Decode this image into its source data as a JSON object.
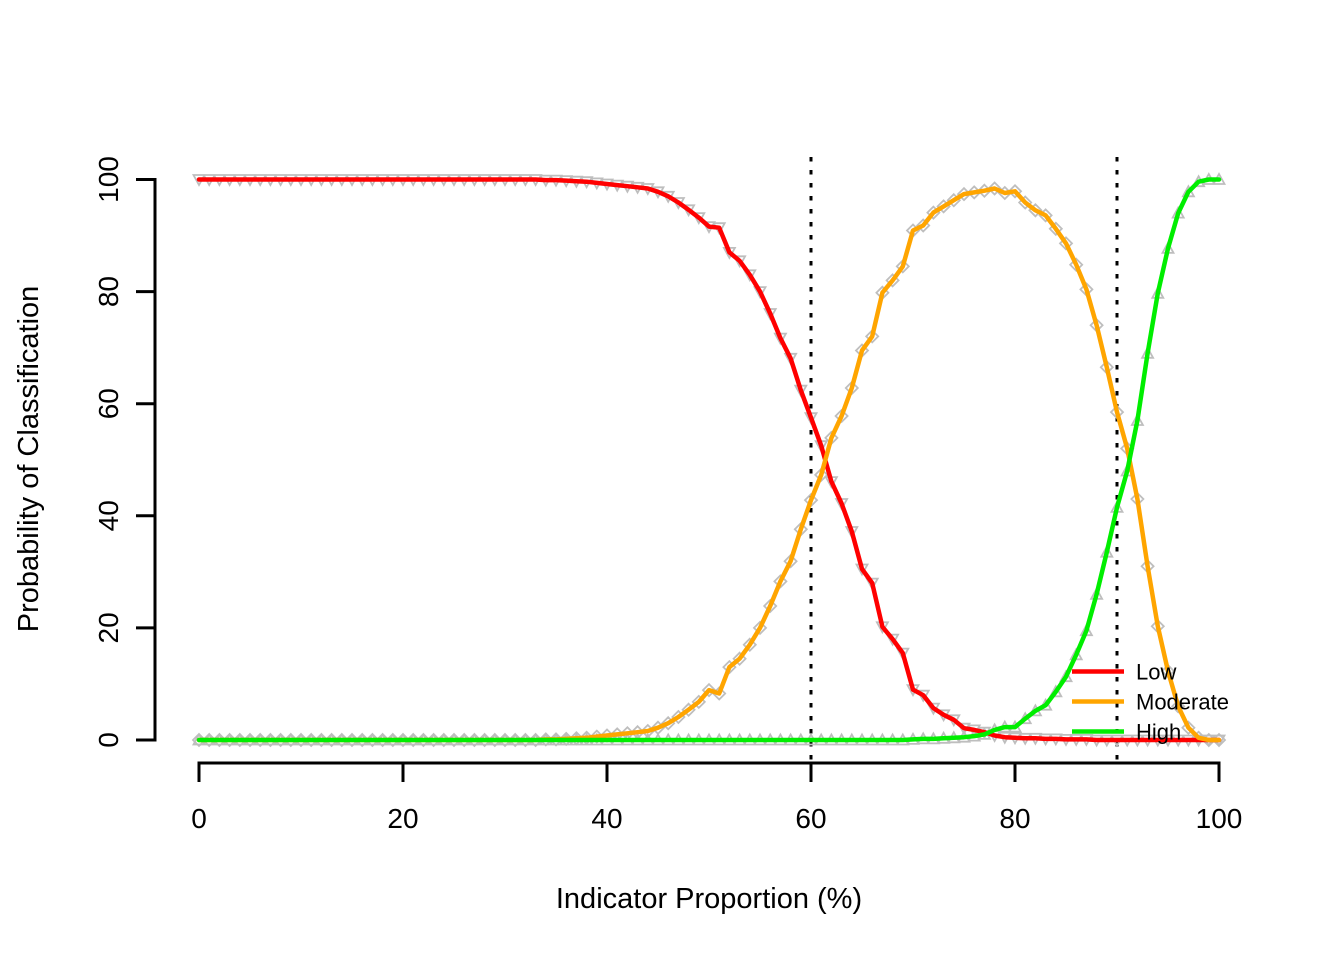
{
  "chart_data": {
    "type": "line",
    "title": "",
    "xlabel": "Indicator Proportion (%)",
    "ylabel": "Probability of Classification",
    "xlim": [
      0,
      100
    ],
    "ylim": [
      0,
      100
    ],
    "x_ticks": [
      0,
      20,
      40,
      60,
      80,
      100
    ],
    "y_ticks": [
      0,
      20,
      40,
      60,
      80,
      100
    ],
    "grid": false,
    "background": "#FFFFFF",
    "marker_color": "#BEBEBE",
    "reference_lines": {
      "vertical_dotted_x": [
        60,
        90
      ],
      "color": "#000000",
      "style": "dotted"
    },
    "legend": {
      "position": "bottom-right",
      "entries": [
        "Low",
        "Moderate",
        "High"
      ]
    },
    "x": [
      0,
      1,
      2,
      3,
      4,
      5,
      6,
      7,
      8,
      9,
      10,
      11,
      12,
      13,
      14,
      15,
      16,
      17,
      18,
      19,
      20,
      21,
      22,
      23,
      24,
      25,
      26,
      27,
      28,
      29,
      30,
      31,
      32,
      33,
      34,
      35,
      36,
      37,
      38,
      39,
      40,
      41,
      42,
      43,
      44,
      45,
      46,
      47,
      48,
      49,
      50,
      51,
      52,
      53,
      54,
      55,
      56,
      57,
      58,
      59,
      60,
      61,
      62,
      63,
      64,
      65,
      66,
      67,
      68,
      69,
      70,
      71,
      72,
      73,
      74,
      75,
      76,
      77,
      78,
      79,
      80,
      81,
      82,
      83,
      84,
      85,
      86,
      87,
      88,
      89,
      90,
      91,
      92,
      93,
      94,
      95,
      96,
      97,
      98,
      99,
      100
    ],
    "series": [
      {
        "name": "Low",
        "color": "#FF0000",
        "marker": "triangle-down",
        "values": [
          100,
          100,
          100,
          100,
          100,
          100,
          100,
          100,
          100,
          100,
          100,
          100,
          100,
          100,
          100,
          100,
          100,
          100,
          100,
          100,
          100,
          100,
          100,
          100,
          100,
          100,
          100,
          100,
          100,
          100,
          100,
          100,
          100,
          100,
          99.9,
          99.9,
          99.8,
          99.7,
          99.6,
          99.4,
          99.2,
          99,
          98.8,
          98.6,
          98.4,
          97.8,
          97,
          95.9,
          94.6,
          93.2,
          91.6,
          91.4,
          87,
          85.5,
          83,
          80,
          76.1,
          71.7,
          68.1,
          62.4,
          57.5,
          52.5,
          46.1,
          42.2,
          37.2,
          30.5,
          28,
          20.2,
          18,
          15.5,
          9,
          8,
          5.7,
          4.5,
          3.6,
          2.1,
          1.8,
          1.4,
          0.8,
          0.5,
          0.4,
          0.3,
          0.3,
          0.2,
          0.2,
          0.1,
          0.1,
          0.1,
          0,
          0,
          0,
          0,
          0,
          0,
          0,
          0,
          0,
          0,
          0,
          0,
          0
        ]
      },
      {
        "name": "Moderate",
        "color": "#FFA500",
        "marker": "diamond",
        "values": [
          0,
          0,
          0,
          0,
          0,
          0,
          0,
          0,
          0,
          0,
          0,
          0,
          0,
          0,
          0,
          0,
          0,
          0,
          0,
          0,
          0,
          0,
          0,
          0,
          0,
          0,
          0,
          0,
          0,
          0,
          0,
          0,
          0,
          0,
          0.1,
          0.1,
          0.2,
          0.3,
          0.4,
          0.6,
          0.8,
          1,
          1.2,
          1.4,
          1.6,
          2.2,
          3,
          4.1,
          5.4,
          6.8,
          8.9,
          8.3,
          13,
          14.5,
          17,
          20,
          23.9,
          28.3,
          31.9,
          37.6,
          42.8,
          47.3,
          53.9,
          57.8,
          62.8,
          69.5,
          72,
          79.8,
          82,
          84.5,
          90.9,
          91.8,
          94.1,
          95.2,
          96.3,
          97.4,
          97.7,
          98,
          98.4,
          97.6,
          97.9,
          95.9,
          94.5,
          93.6,
          91.2,
          88.6,
          84.8,
          80.4,
          74,
          66.5,
          58.5,
          52,
          43,
          31,
          20.3,
          12.3,
          6,
          2.2,
          0.4,
          0,
          0
        ]
      },
      {
        "name": "High",
        "color": "#00EE00",
        "marker": "triangle-up",
        "values": [
          0,
          0,
          0,
          0,
          0,
          0,
          0,
          0,
          0,
          0,
          0,
          0,
          0,
          0,
          0,
          0,
          0,
          0,
          0,
          0,
          0,
          0,
          0,
          0,
          0,
          0,
          0,
          0,
          0,
          0,
          0,
          0,
          0,
          0,
          0,
          0,
          0,
          0,
          0,
          0,
          0,
          0,
          0,
          0,
          0,
          0,
          0,
          0,
          0,
          0,
          0,
          0,
          0,
          0,
          0,
          0,
          0,
          0,
          0,
          0,
          0,
          0,
          0,
          0,
          0,
          0,
          0,
          0,
          0,
          0,
          0.1,
          0.2,
          0.2,
          0.3,
          0.4,
          0.5,
          0.7,
          1,
          1.8,
          2.3,
          2.3,
          3.8,
          5.2,
          6.2,
          8.6,
          11.3,
          15.2,
          19.5,
          26,
          33.5,
          41.5,
          48,
          57,
          69,
          79.7,
          87.7,
          94,
          97.8,
          99.6,
          100,
          100
        ]
      }
    ]
  }
}
